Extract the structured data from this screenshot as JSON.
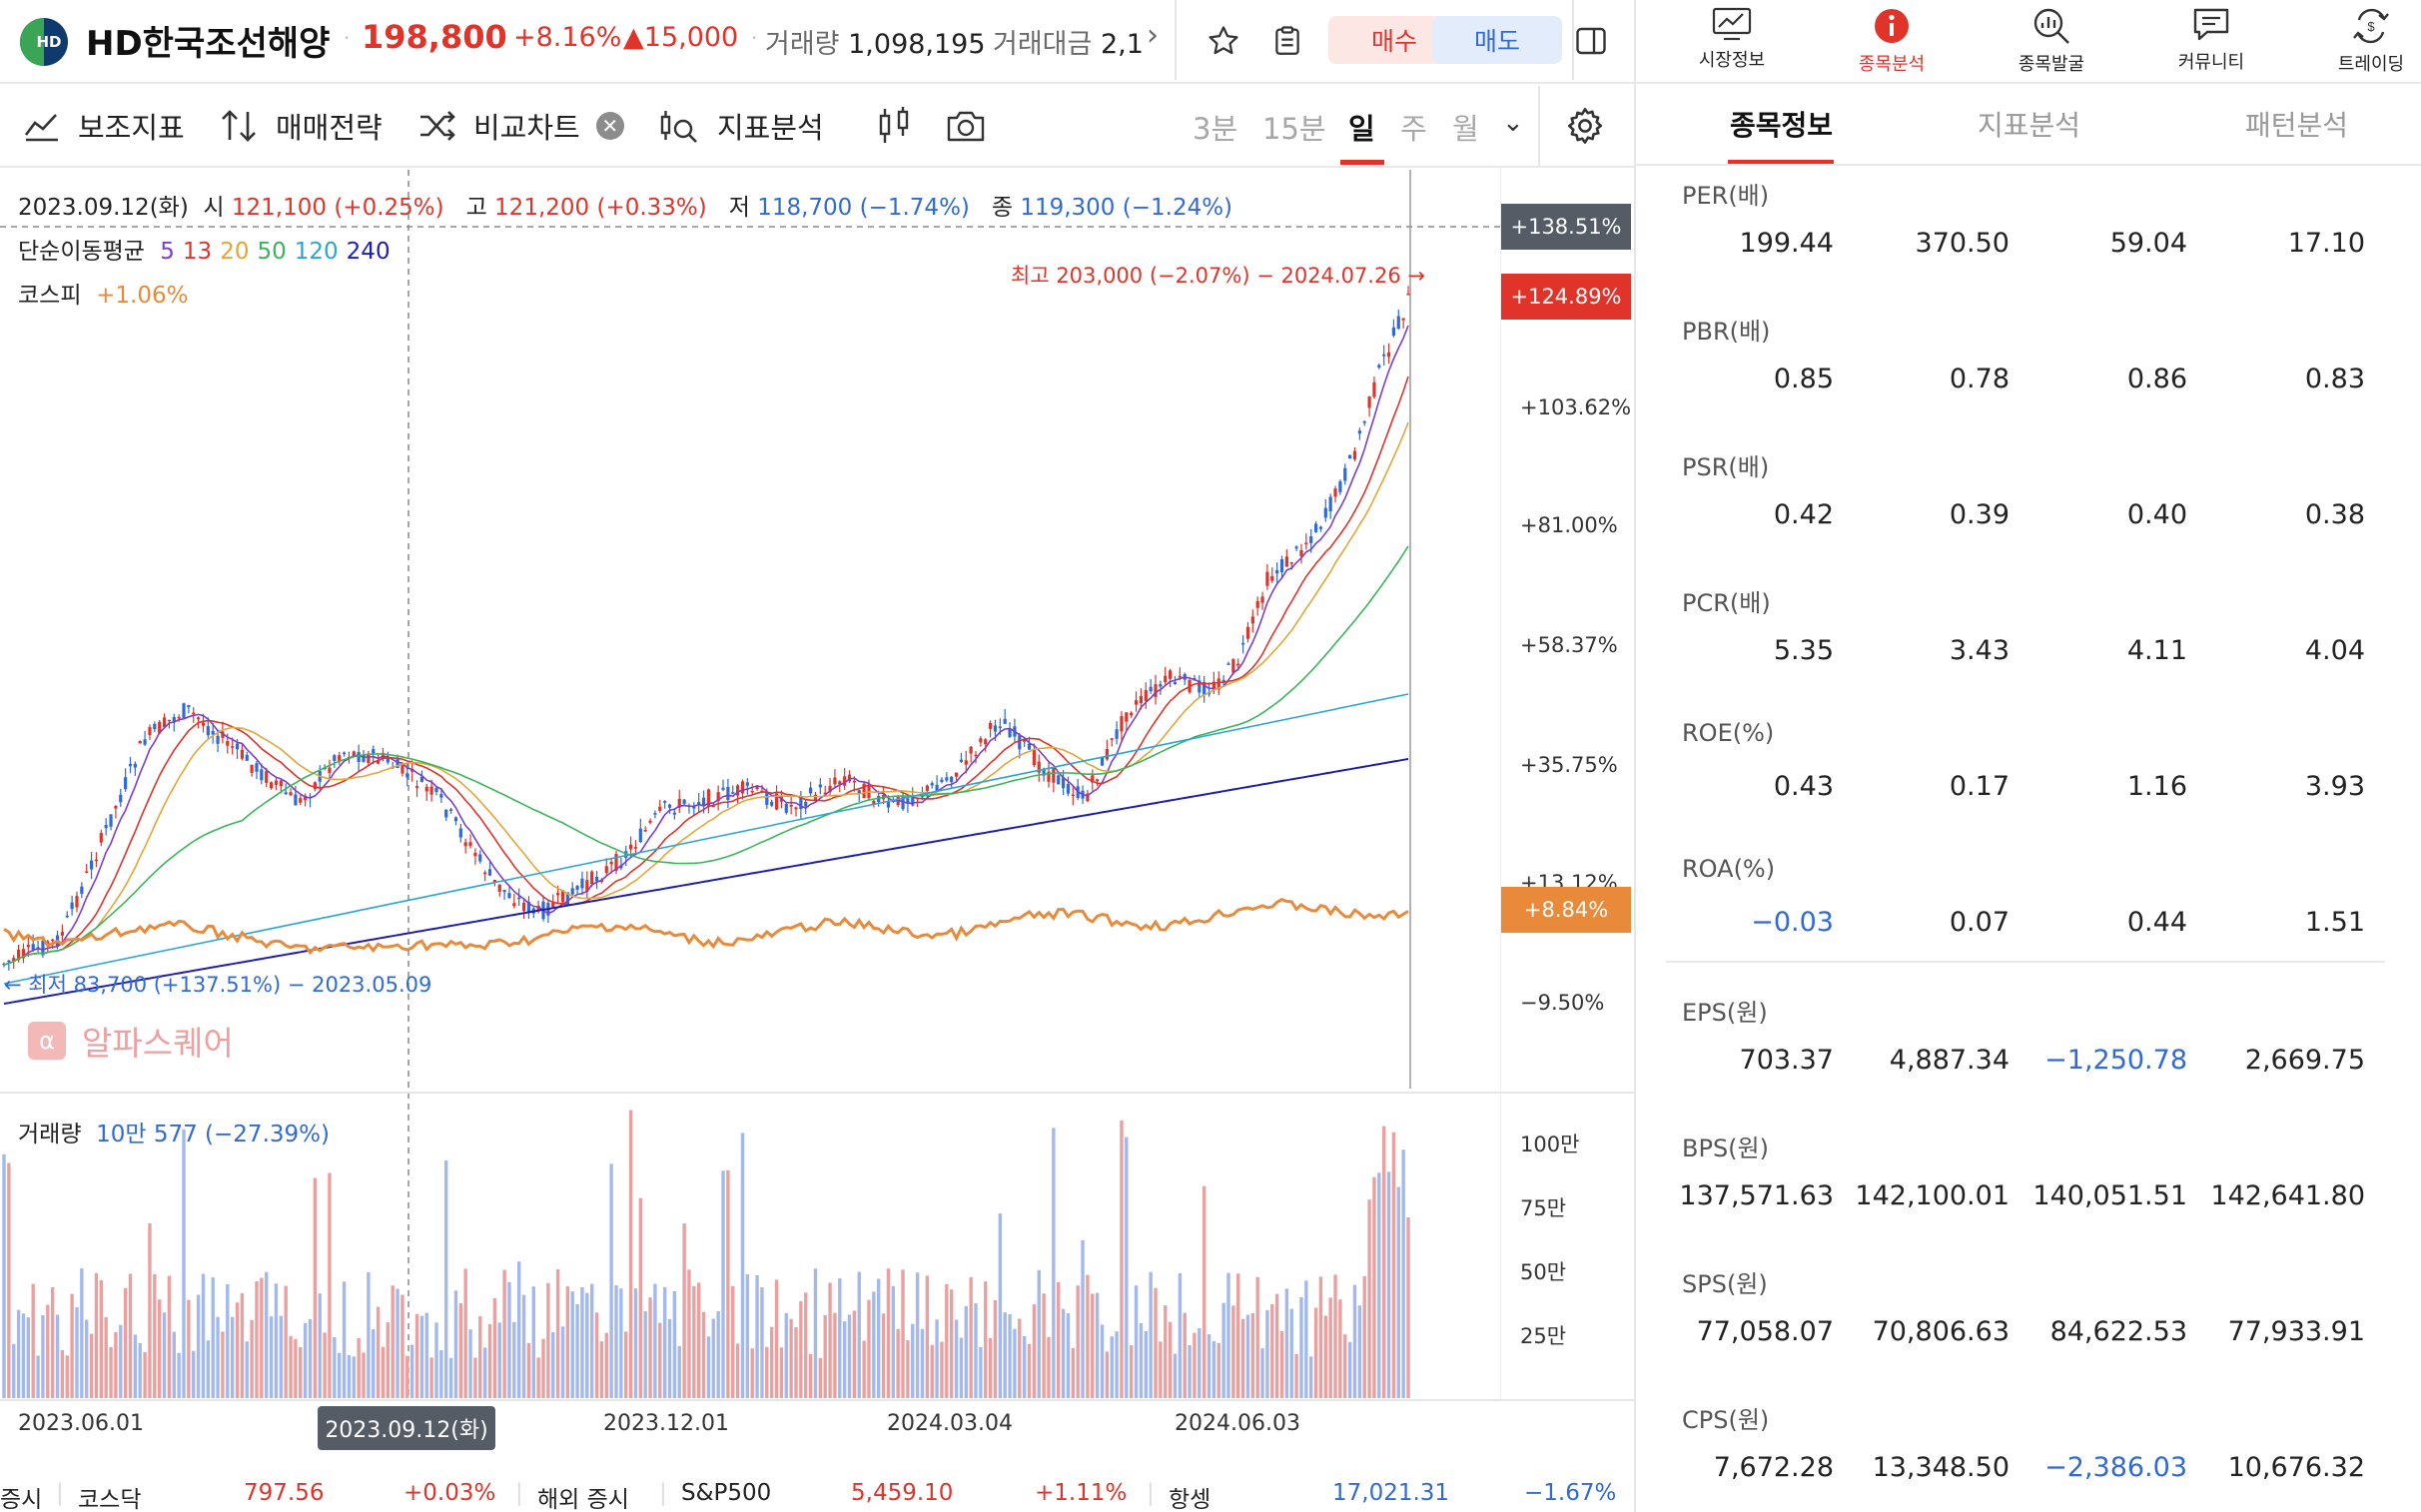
{
  "header": {
    "stock_name": "HD한국조선해양",
    "logo_text": "HD",
    "price": "198,800",
    "change_pct": "+8.16%",
    "change_abs": "▲15,000",
    "volume_label": "거래량",
    "volume_value": "1,098,195",
    "amount_label": "거래대금",
    "amount_value": "2,1",
    "buy_label": "매수",
    "sell_label": "매도"
  },
  "toolbar": {
    "indicators": "보조지표",
    "strategy": "매매전략",
    "compare": "비교차트",
    "analysis": "지표분석",
    "timeframes": [
      "3분",
      "15분",
      "일",
      "주",
      "월"
    ],
    "active_timeframe": "일"
  },
  "chart": {
    "info_date": "2023.09.12(화)",
    "open_label": "시",
    "open_value": "121,100 (+0.25%)",
    "high_label": "고",
    "high_value": "121,200 (+0.33%)",
    "low_label": "저",
    "low_value": "118,700 (−1.74%)",
    "close_label": "종",
    "close_value": "119,300 (−1.24%)",
    "ma_label": "단순이동평균",
    "ma_periods": [
      "5",
      "13",
      "20",
      "50",
      "120",
      "240"
    ],
    "ma_colors": [
      "#7b3fd0",
      "#e0342b",
      "#e3a63a",
      "#3cb55a",
      "#2aa5d8",
      "#1d1db8"
    ],
    "kospi_label": "코스피",
    "kospi_value": "+1.06%",
    "max_annotation": "최고 203,000 (−2.07%) − 2024.07.26 →",
    "min_annotation": "← 최저 83,700 (+137.51%) − 2023.05.09",
    "watermark": "알파스퀘어",
    "axis_labels": [
      "+103.62%",
      "+81.00%",
      "+58.37%",
      "+35.75%",
      "+13.12%",
      "−9.50%"
    ],
    "tag_top": "+138.51%",
    "tag_current": "+124.89%",
    "tag_kospi": "+8.84%",
    "volume_label": "거래량",
    "volume_value": "10만 577 (−27.39%)",
    "volume_axis": [
      "100만",
      "75만",
      "50만",
      "25만"
    ],
    "dates": [
      "2023.06.01",
      "2023.12.01",
      "2024.03.04",
      "2024.06.03"
    ],
    "date_tip": "2023.09.12(화)"
  },
  "ticker": {
    "cut_label": "증시",
    "kosdaq_label": "코스닥",
    "kosdaq_value": "797.56",
    "kosdaq_change": "+0.03%",
    "overseas_label": "해외 증시",
    "sp_label": "S&P500",
    "sp_value": "5,459.10",
    "sp_change": "+1.11%",
    "hs_label": "항셍",
    "hs_value": "17,021.31",
    "hs_change": "−1.67%"
  },
  "right_nav": [
    "시장정보",
    "종목분석",
    "종목발굴",
    "커뮤니티",
    "트레이딩"
  ],
  "right_nav_icons": [
    "chart-monitor-icon",
    "info-icon",
    "search-chart-icon",
    "chat-icon",
    "exchange-icon"
  ],
  "sub_tabs": [
    "종목정보",
    "지표분석",
    "패턴분석"
  ],
  "metrics": [
    {
      "name": "PER(배)",
      "values": [
        "199.44",
        "370.50",
        "59.04",
        "17.10"
      ]
    },
    {
      "name": "PBR(배)",
      "values": [
        "0.85",
        "0.78",
        "0.86",
        "0.83"
      ]
    },
    {
      "name": "PSR(배)",
      "values": [
        "0.42",
        "0.39",
        "0.40",
        "0.38"
      ]
    },
    {
      "name": "PCR(배)",
      "values": [
        "5.35",
        "3.43",
        "4.11",
        "4.04"
      ]
    },
    {
      "name": "ROE(%)",
      "values": [
        "0.43",
        "0.17",
        "1.16",
        "3.93"
      ]
    },
    {
      "name": "ROA(%)",
      "values": [
        "−0.03",
        "0.07",
        "0.44",
        "1.51"
      ]
    },
    {
      "name": "EPS(원)",
      "values": [
        "703.37",
        "4,887.34",
        "−1,250.78",
        "2,669.75"
      ]
    },
    {
      "name": "BPS(원)",
      "values": [
        "137,571.63",
        "142,100.01",
        "140,051.51",
        "142,641.80"
      ]
    },
    {
      "name": "SPS(원)",
      "values": [
        "77,058.07",
        "70,806.63",
        "84,622.53",
        "77,933.91"
      ]
    },
    {
      "name": "CPS(원)",
      "values": [
        "7,672.28",
        "13,348.50",
        "−2,386.03",
        "10,676.32"
      ]
    }
  ]
}
